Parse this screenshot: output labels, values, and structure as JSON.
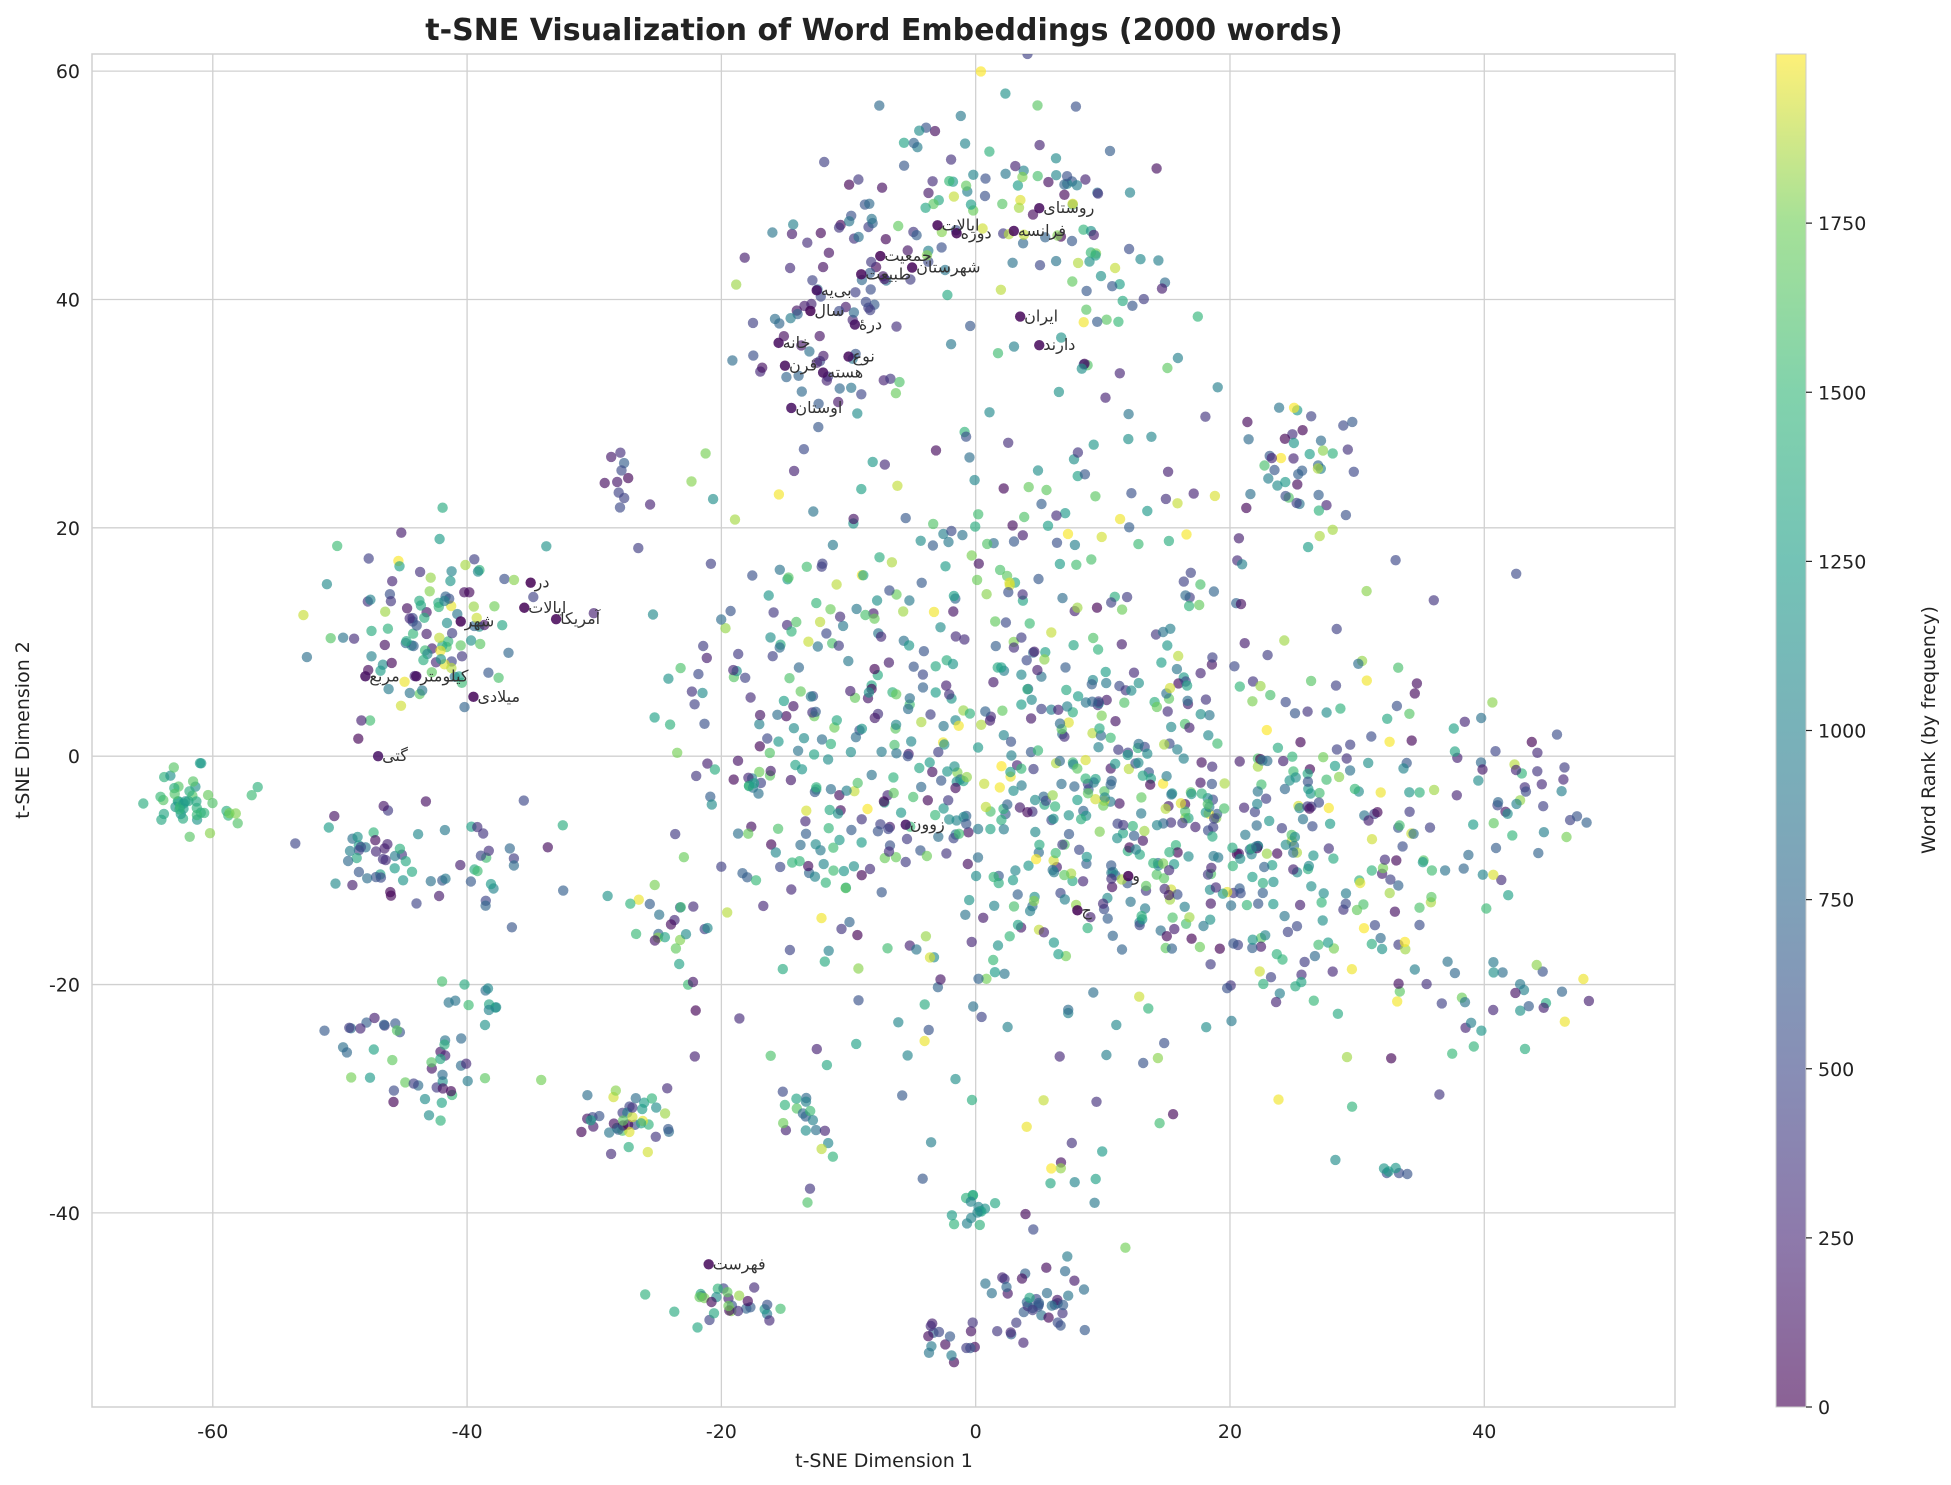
{
  "chart_data": {
    "type": "scatter",
    "title": "t-SNE Visualization of Word Embeddings (2000 words)",
    "xlabel": "t-SNE Dimension 1",
    "ylabel": "t-SNE Dimension 2",
    "xlim": [
      -69.5,
      55
    ],
    "ylim": [
      -57,
      61.5
    ],
    "xticks": [
      -60,
      -40,
      -20,
      0,
      20,
      40
    ],
    "yticks": [
      -40,
      -20,
      0,
      20,
      40,
      60
    ],
    "grid": true,
    "colormap": "viridis",
    "colors": {
      "low": "#440154",
      "mid": "#21918c",
      "high": "#fde725",
      "grid": "#d0d0d0"
    },
    "colorbar": {
      "label": "Word Rank (by frequency)",
      "range": [
        0,
        2000
      ],
      "ticks": [
        0,
        250,
        500,
        750,
        1000,
        1250,
        1500,
        1750
      ]
    },
    "point_count": 2000,
    "labeled_points": [
      {
        "text": "روستای",
        "x": 5.0,
        "y": 48.0,
        "rank": 60
      },
      {
        "text": "ایالات",
        "x": -3.0,
        "y": 46.5,
        "rank": 20
      },
      {
        "text": "فرانسه",
        "x": 3.0,
        "y": 46.0,
        "rank": 40
      },
      {
        "text": "دوره",
        "x": -1.5,
        "y": 45.8,
        "rank": 30
      },
      {
        "text": "جمعیت",
        "x": -7.5,
        "y": 43.8,
        "rank": 15
      },
      {
        "text": "شهرستان",
        "x": -5.0,
        "y": 42.8,
        "rank": 25
      },
      {
        "text": "طبیعت",
        "x": -9.0,
        "y": 42.2,
        "rank": 50
      },
      {
        "text": "بی‌یه",
        "x": -12.5,
        "y": 40.8,
        "rank": 80
      },
      {
        "text": "سال",
        "x": -13.0,
        "y": 39.0,
        "rank": 10
      },
      {
        "text": "ایران",
        "x": 3.5,
        "y": 38.5,
        "rank": 35
      },
      {
        "text": "درهٔ",
        "x": -9.5,
        "y": 37.8,
        "rank": 90
      },
      {
        "text": "خانه",
        "x": -15.5,
        "y": 36.2,
        "rank": 70
      },
      {
        "text": "دارند",
        "x": 5.0,
        "y": 36.0,
        "rank": 45
      },
      {
        "text": "نوع",
        "x": -10.0,
        "y": 35.0,
        "rank": 55
      },
      {
        "text": "قرن",
        "x": -15.0,
        "y": 34.2,
        "rank": 65
      },
      {
        "text": "هسته",
        "x": -12.0,
        "y": 33.6,
        "rank": 75
      },
      {
        "text": "اوستان",
        "x": -14.5,
        "y": 30.5,
        "rank": 85
      },
      {
        "text": "در",
        "x": -35.0,
        "y": 15.2,
        "rank": 2
      },
      {
        "text": "ایالات",
        "x": -35.5,
        "y": 13.0,
        "rank": 12
      },
      {
        "text": "آمریکا",
        "x": -33.0,
        "y": 12.0,
        "rank": 22
      },
      {
        "text": "شهر",
        "x": -40.5,
        "y": 11.8,
        "rank": 18
      },
      {
        "text": "کیلومتر",
        "x": -44.0,
        "y": 7.0,
        "rank": 95
      },
      {
        "text": "مربع",
        "x": -48.0,
        "y": 7.0,
        "rank": 100
      },
      {
        "text": "میلادی",
        "x": -39.5,
        "y": 5.2,
        "rank": 28
      },
      {
        "text": "گتی",
        "x": -47.0,
        "y": 0.0,
        "rank": 110
      },
      {
        "text": "زوون",
        "x": -5.5,
        "y": -6.0,
        "rank": 120
      },
      {
        "text": "و",
        "x": 12.0,
        "y": -10.5,
        "rank": 1
      },
      {
        "text": "ج",
        "x": 8.0,
        "y": -13.5,
        "rank": 5
      },
      {
        "text": "فهرست",
        "x": -21.0,
        "y": -44.5,
        "rank": 42
      }
    ],
    "clusters": [
      {
        "x": -62.0,
        "y": -4.0,
        "sx": 1.3,
        "sy": 1.5,
        "n": 35,
        "rank": [
          1100,
          1700
        ]
      },
      {
        "x": -59.0,
        "y": -4.8,
        "sx": 1.5,
        "sy": 1.2,
        "n": 10,
        "rank": [
          1400,
          1800
        ]
      },
      {
        "x": -47.0,
        "y": -9.0,
        "sx": 2.5,
        "sy": 2.0,
        "n": 40,
        "rank": [
          0,
          1500
        ]
      },
      {
        "x": -39.0,
        "y": -9.0,
        "sx": 2.2,
        "sy": 2.5,
        "n": 25,
        "rank": [
          0,
          1600
        ]
      },
      {
        "x": -43.0,
        "y": 11.0,
        "sx": 4.0,
        "sy": 3.5,
        "n": 110,
        "rank": [
          0,
          2000
        ]
      },
      {
        "x": -47.0,
        "y": -23.5,
        "sx": 1.6,
        "sy": 0.5,
        "n": 10,
        "rank": [
          0,
          800
        ]
      },
      {
        "x": -43.0,
        "y": -28.0,
        "sx": 2.8,
        "sy": 2.0,
        "n": 35,
        "rank": [
          0,
          1900
        ]
      },
      {
        "x": -39.0,
        "y": -22.0,
        "sx": 1.6,
        "sy": 1.0,
        "n": 12,
        "rank": [
          600,
          1600
        ]
      },
      {
        "x": -28.0,
        "y": 23.0,
        "sx": 0.9,
        "sy": 2.0,
        "n": 12,
        "rank": [
          0,
          700
        ]
      },
      {
        "x": -28.5,
        "y": -32.0,
        "sx": 1.8,
        "sy": 1.5,
        "n": 25,
        "rank": [
          0,
          2000
        ]
      },
      {
        "x": -25.5,
        "y": -31.0,
        "sx": 1.5,
        "sy": 2.0,
        "n": 15,
        "rank": [
          0,
          2000
        ]
      },
      {
        "x": -24.0,
        "y": -15.0,
        "sx": 1.5,
        "sy": 3.0,
        "n": 25,
        "rank": [
          0,
          2000
        ]
      },
      {
        "x": -19.0,
        "y": -48.0,
        "sx": 2.2,
        "sy": 1.0,
        "n": 30,
        "rank": [
          0,
          1900
        ]
      },
      {
        "x": -13.0,
        "y": 36.0,
        "sx": 3.0,
        "sy": 3.0,
        "n": 40,
        "rank": [
          0,
          900
        ]
      },
      {
        "x": -9.0,
        "y": 44.0,
        "sx": 3.5,
        "sy": 3.5,
        "n": 40,
        "rank": [
          0,
          1000
        ]
      },
      {
        "x": -2.0,
        "y": 50.0,
        "sx": 3.0,
        "sy": 4.0,
        "n": 40,
        "rank": [
          0,
          2000
        ]
      },
      {
        "x": 6.0,
        "y": 47.0,
        "sx": 4.0,
        "sy": 5.0,
        "n": 60,
        "rank": [
          0,
          2000
        ]
      },
      {
        "x": 10.0,
        "y": 40.0,
        "sx": 3.0,
        "sy": 3.0,
        "n": 25,
        "rank": [
          0,
          2000
        ]
      },
      {
        "x": -13.0,
        "y": -32.0,
        "sx": 1.5,
        "sy": 3.0,
        "n": 22,
        "rank": [
          0,
          1900
        ]
      },
      {
        "x": -3.0,
        "y": -51.0,
        "sx": 1.3,
        "sy": 1.0,
        "n": 15,
        "rank": [
          0,
          1000
        ]
      },
      {
        "x": 5.0,
        "y": -48.0,
        "sx": 2.0,
        "sy": 1.5,
        "n": 40,
        "rank": [
          0,
          900
        ]
      },
      {
        "x": 0.0,
        "y": -40.0,
        "sx": 1.2,
        "sy": 1.0,
        "n": 15,
        "rank": [
          1000,
          1500
        ]
      },
      {
        "x": 8.0,
        "y": -38.0,
        "sx": 3.0,
        "sy": 4.0,
        "n": 15,
        "rank": [
          0,
          2000
        ]
      },
      {
        "x": 32.5,
        "y": -36.0,
        "sx": 1.0,
        "sy": 0.6,
        "n": 6,
        "rank": [
          500,
          1300
        ]
      },
      {
        "x": 42.0,
        "y": -22.0,
        "sx": 3.0,
        "sy": 2.5,
        "n": 20,
        "rank": [
          0,
          2000
        ]
      },
      {
        "x": 42.0,
        "y": -2.0,
        "sx": 3.0,
        "sy": 3.0,
        "n": 20,
        "rank": [
          0,
          2000
        ]
      },
      {
        "x": 45.0,
        "y": -1.5,
        "sx": 2.0,
        "sy": 2.0,
        "n": 8,
        "rank": [
          0,
          800
        ]
      },
      {
        "x": 25.0,
        "y": 25.0,
        "sx": 3.0,
        "sy": 3.0,
        "n": 45,
        "rank": [
          0,
          2000
        ]
      },
      {
        "x": 18.0,
        "y": -6.0,
        "sx": 6.0,
        "sy": 6.0,
        "n": 160,
        "rank": [
          0,
          2000
        ]
      },
      {
        "x": 5.0,
        "y": 2.0,
        "sx": 11.0,
        "sy": 13.0,
        "n": 600,
        "rank": [
          0,
          2000
        ]
      },
      {
        "x": -14.0,
        "y": 0.0,
        "sx": 5.5,
        "sy": 10.0,
        "n": 150,
        "rank": [
          0,
          2000
        ]
      },
      {
        "x": 30.0,
        "y": -12.0,
        "sx": 6.0,
        "sy": 9.0,
        "n": 150,
        "rank": [
          0,
          2000
        ]
      }
    ]
  }
}
